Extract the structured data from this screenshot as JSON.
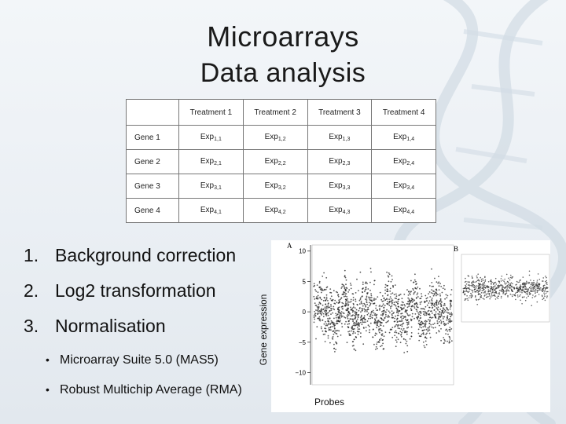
{
  "slide": {
    "title": "Microarrays",
    "subtitle": "Data analysis"
  },
  "table": {
    "headers": [
      "",
      "Treatment 1",
      "Treatment 2",
      "Treatment 3",
      "Treatment 4"
    ],
    "rows": [
      {
        "gene": "Gene 1",
        "cells": [
          {
            "base": "Exp",
            "sub": "1,1"
          },
          {
            "base": "Exp",
            "sub": "1,2"
          },
          {
            "base": "Exp",
            "sub": "1,3"
          },
          {
            "base": "Exp",
            "sub": "1,4"
          }
        ]
      },
      {
        "gene": "Gene 2",
        "cells": [
          {
            "base": "Exp",
            "sub": "2,1"
          },
          {
            "base": "Exp",
            "sub": "2,2"
          },
          {
            "base": "Exp",
            "sub": "2,3"
          },
          {
            "base": "Exp",
            "sub": "2,4"
          }
        ]
      },
      {
        "gene": "Gene 3",
        "cells": [
          {
            "base": "Exp",
            "sub": "3,1"
          },
          {
            "base": "Exp",
            "sub": "3,2"
          },
          {
            "base": "Exp",
            "sub": "3,3"
          },
          {
            "base": "Exp",
            "sub": "3,4"
          }
        ]
      },
      {
        "gene": "Gene 4",
        "cells": [
          {
            "base": "Exp",
            "sub": "4,1"
          },
          {
            "base": "Exp",
            "sub": "4,2"
          },
          {
            "base": "Exp",
            "sub": "4,3"
          },
          {
            "base": "Exp",
            "sub": "4,4"
          }
        ]
      }
    ]
  },
  "steps": [
    {
      "num": "1.",
      "label": "Background correction"
    },
    {
      "num": "2.",
      "label": "Log2 transformation"
    },
    {
      "num": "3.",
      "label": "Normalisation"
    }
  ],
  "substeps": [
    {
      "bullet": "•",
      "label": "Microarray Suite 5.0 (MAS5)"
    },
    {
      "bullet": "•",
      "label": "Robust Multichip Average (RMA)"
    }
  ],
  "plot": {
    "panel_a_label": "A",
    "panel_b_label": "B",
    "y_axis_label": "Gene expression",
    "x_axis_label": "Probes",
    "y_ticks": [
      "10",
      "5",
      "0",
      "−5",
      "−10"
    ],
    "y_range": [
      -12,
      11
    ]
  },
  "colors": {
    "background": "#eef2f6",
    "text": "#111111",
    "table_border": "#777777",
    "plot_points": "#222222"
  }
}
